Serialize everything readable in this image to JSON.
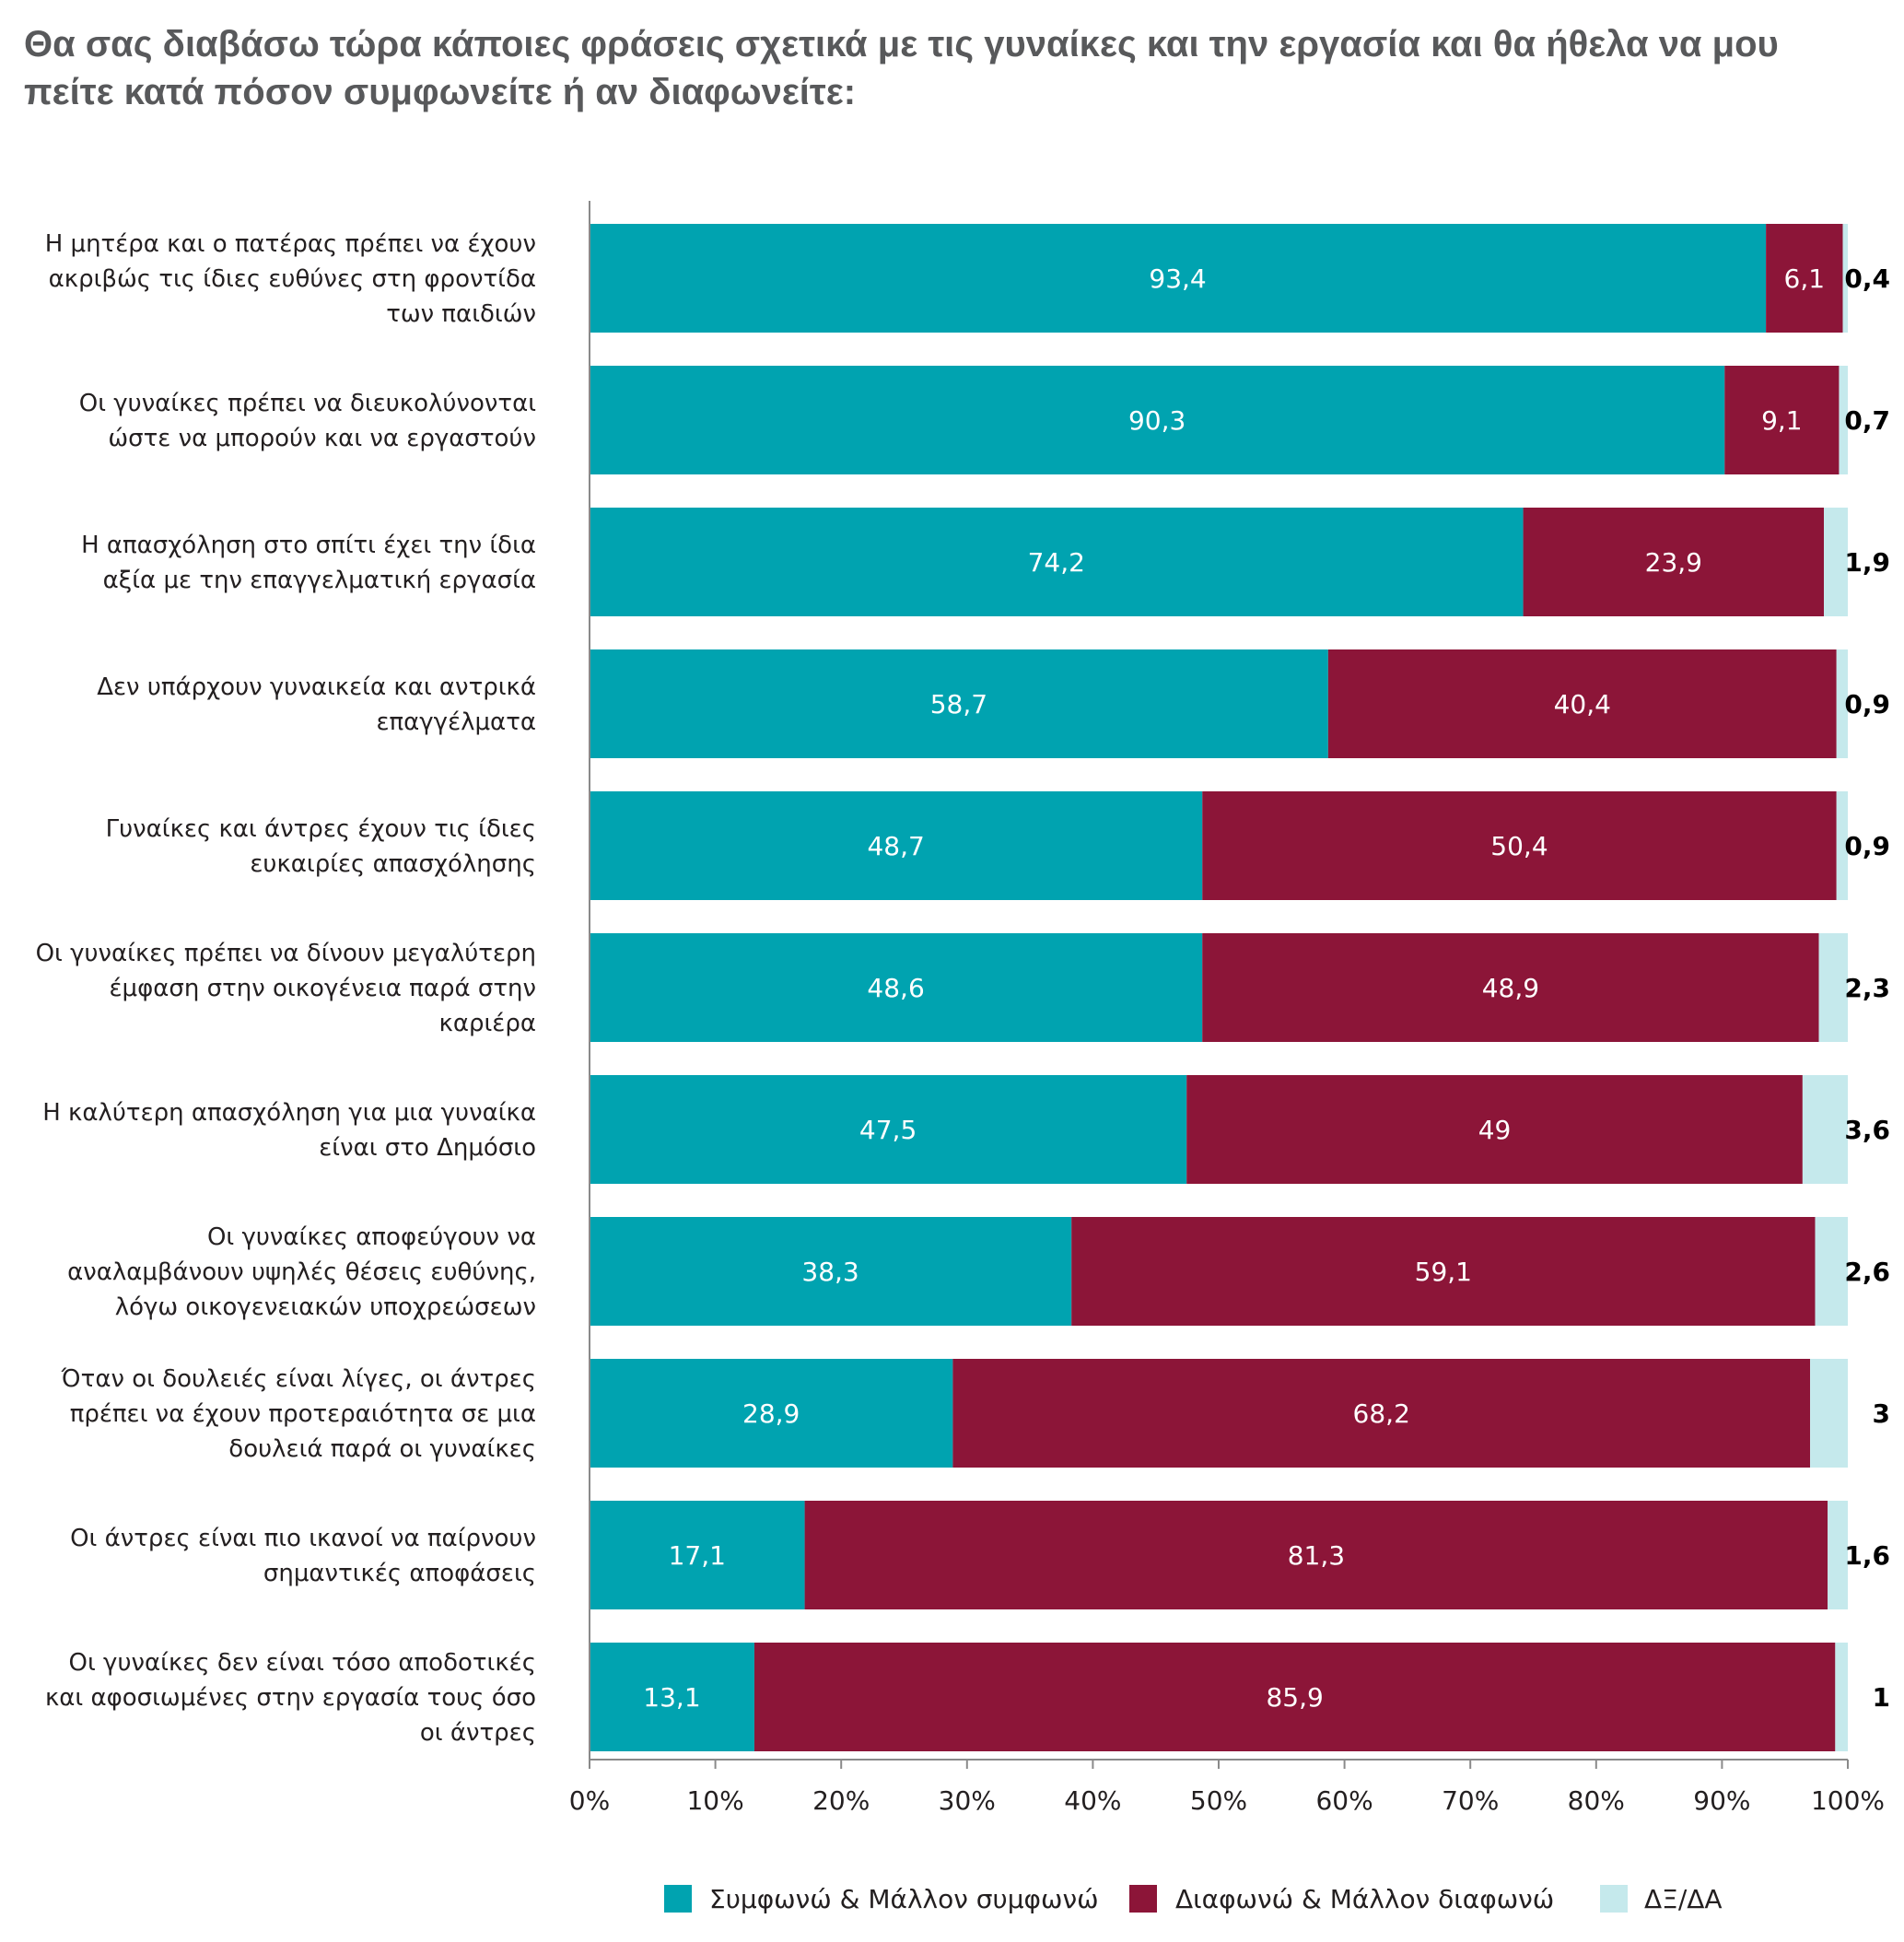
{
  "title": "Θα σας διαβάσω τώρα κάποιες φράσεις σχετικά με τις γυναίκες και την εργασία και θα ήθελα να μου πείτε κατά πόσον συμφωνείτε ή αν διαφωνείτε:",
  "chart_data": {
    "type": "bar",
    "orientation": "horizontal",
    "stacked": true,
    "categories": [
      [
        "Η μητέρα και ο πατέρας πρέπει να έχουν",
        "ακριβώς τις ίδιες ευθύνες στη φροντίδα",
        "των παιδιών"
      ],
      [
        "Οι γυναίκες πρέπει να διευκολύνονται",
        "ώστε να μπορούν και να εργαστούν"
      ],
      [
        "Η απασχόληση στο σπίτι έχει την ίδια",
        "αξία με την επαγγελματική εργασία"
      ],
      [
        "Δεν υπάρχουν γυναικεία και αντρικά",
        "επαγγέλματα"
      ],
      [
        "Γυναίκες και άντρες έχουν τις ίδιες",
        "ευκαιρίες απασχόλησης"
      ],
      [
        "Οι γυναίκες πρέπει να δίνουν μεγαλύτερη",
        "έμφαση στην οικογένεια παρά στην",
        "καριέρα"
      ],
      [
        "Η καλύτερη απασχόληση για μια γυναίκα",
        "είναι στο Δημόσιο"
      ],
      [
        "Οι γυναίκες αποφεύγουν να",
        "αναλαμβάνουν υψηλές θέσεις ευθύνης,",
        "λόγω οικογενειακών υποχρεώσεων"
      ],
      [
        "Όταν οι δουλειές είναι λίγες, οι άντρες",
        "πρέπει να έχουν προτεραιότητα σε μια",
        "δουλειά παρά οι γυναίκες"
      ],
      [
        "Οι άντρες είναι πιο ικανοί να παίρνουν",
        "σημαντικές αποφάσεις"
      ],
      [
        "Οι γυναίκες δεν είναι τόσο αποδοτικές",
        "και αφοσιωμένες στην εργασία τους όσο",
        "οι άντρες"
      ]
    ],
    "series": [
      {
        "name": "Συμφωνώ & Μάλλον συμφωνώ",
        "color": "#00a3b0",
        "values": [
          93.4,
          90.3,
          74.2,
          58.7,
          48.7,
          48.6,
          47.5,
          38.3,
          28.9,
          17.1,
          13.1
        ],
        "labels": [
          "93,4",
          "90,3",
          "74,2",
          "58,7",
          "48,7",
          "48,6",
          "47,5",
          "38,3",
          "28,9",
          "17,1",
          "13,1"
        ]
      },
      {
        "name": "Διαφωνώ & Μάλλον διαφωνώ",
        "color": "#8c1538",
        "values": [
          6.1,
          9.1,
          23.9,
          40.4,
          50.4,
          48.9,
          49,
          59.1,
          68.2,
          81.3,
          85.9
        ],
        "labels": [
          "6,1",
          "9,1",
          "23,9",
          "40,4",
          "50,4",
          "48,9",
          "49",
          "59,1",
          "68,2",
          "81,3",
          "85,9"
        ]
      },
      {
        "name": "ΔΞ/ΔΑ",
        "color": "#c5e9ec",
        "values": [
          0.4,
          0.7,
          1.9,
          0.9,
          0.9,
          2.3,
          3.6,
          2.6,
          3,
          1.6,
          1
        ],
        "labels": [
          "0,4",
          "0,7",
          "1,9",
          "0,9",
          "0,9",
          "2,3",
          "3,6",
          "2,6",
          "3",
          "1,6",
          "1"
        ]
      }
    ],
    "xticks": [
      "0%",
      "10%",
      "20%",
      "30%",
      "40%",
      "50%",
      "60%",
      "70%",
      "80%",
      "90%",
      "100%"
    ],
    "xlim": [
      0,
      100
    ],
    "legend_position": "bottom"
  }
}
